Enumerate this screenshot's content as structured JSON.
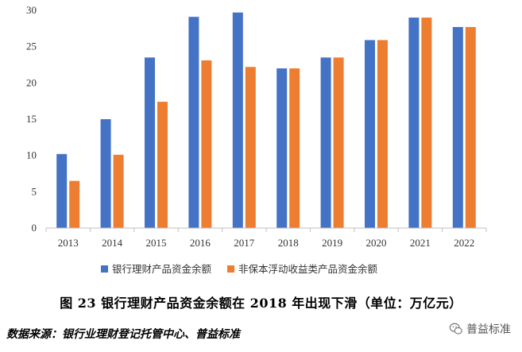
{
  "chart_data": {
    "type": "bar",
    "categories": [
      "2013",
      "2014",
      "2015",
      "2016",
      "2017",
      "2018",
      "2019",
      "2020",
      "2021",
      "2022"
    ],
    "series": [
      {
        "name": "银行理财产品资金余额",
        "color": "#4472C4",
        "values": [
          10.2,
          15.0,
          23.5,
          29.1,
          29.7,
          22.0,
          23.5,
          25.9,
          29.0,
          27.7
        ]
      },
      {
        "name": "非保本浮动收益类产品资金余额",
        "color": "#ED7D31",
        "values": [
          6.5,
          10.1,
          17.4,
          23.1,
          22.2,
          22.0,
          23.5,
          25.9,
          29.0,
          27.7
        ]
      }
    ],
    "ylim": [
      0,
      30
    ],
    "yticks": [
      0,
      5,
      10,
      15,
      20,
      25,
      30
    ],
    "grid": false,
    "legend_position": "bottom"
  },
  "caption": "图 23 银行理财产品资金余额在 2018 年出现下滑（单位：万亿元）",
  "source": "数据来源：银行业理财登记托管中心、普益标准",
  "watermark": {
    "text": "普益标准",
    "icon": "wechat-icon"
  }
}
